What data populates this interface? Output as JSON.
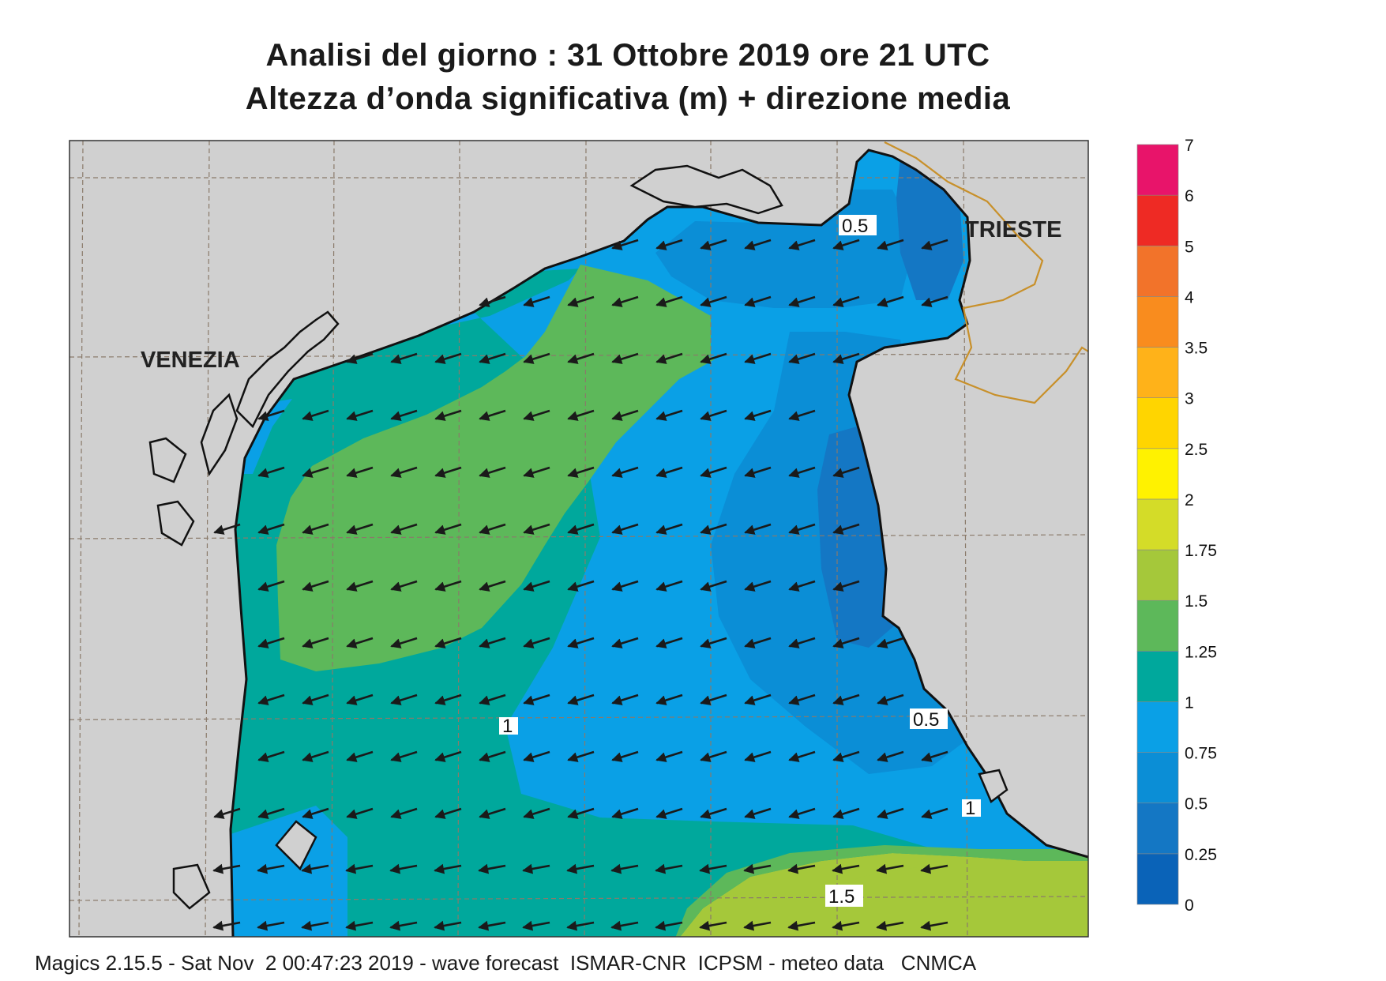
{
  "title": {
    "line1": "Analisi del giorno :  31  Ottobre  2019   ore 21 UTC",
    "line2": "Altezza d’onda significativa (m) + direzione media"
  },
  "map": {
    "places": [
      {
        "name": "VENEZIA"
      },
      {
        "name": "TRIESTE"
      }
    ],
    "contour_labels": [
      "0.5",
      "0.5",
      "1",
      "1",
      "1.5"
    ],
    "colors": {
      "land": "#d0d0d0",
      "grid": "#8a7a6a",
      "coast": "#111111",
      "border": "#c8902a",
      "arrow": "#1a1a1a"
    }
  },
  "legend": {
    "levels": [
      "0",
      "0.25",
      "0.5",
      "0.75",
      "1",
      "1.25",
      "1.5",
      "1.75",
      "2",
      "2.5",
      "3",
      "3.5",
      "4",
      "5",
      "6",
      "7"
    ],
    "colors": [
      "#0a63b8",
      "#1477c4",
      "#0b8ed6",
      "#0aa0e6",
      "#00a89c",
      "#5db85a",
      "#a5c83a",
      "#d4dc28",
      "#fff200",
      "#ffd500",
      "#ffb219",
      "#f98c1e",
      "#f2732a",
      "#ee2a24",
      "#e8146a"
    ]
  },
  "footer": {
    "text": "Magics 2.15.5 - Sat Nov  2 00:47:23 2019 - wave forecast  ISMAR-CNR  ICPSM - meteo data   CNMCA"
  }
}
